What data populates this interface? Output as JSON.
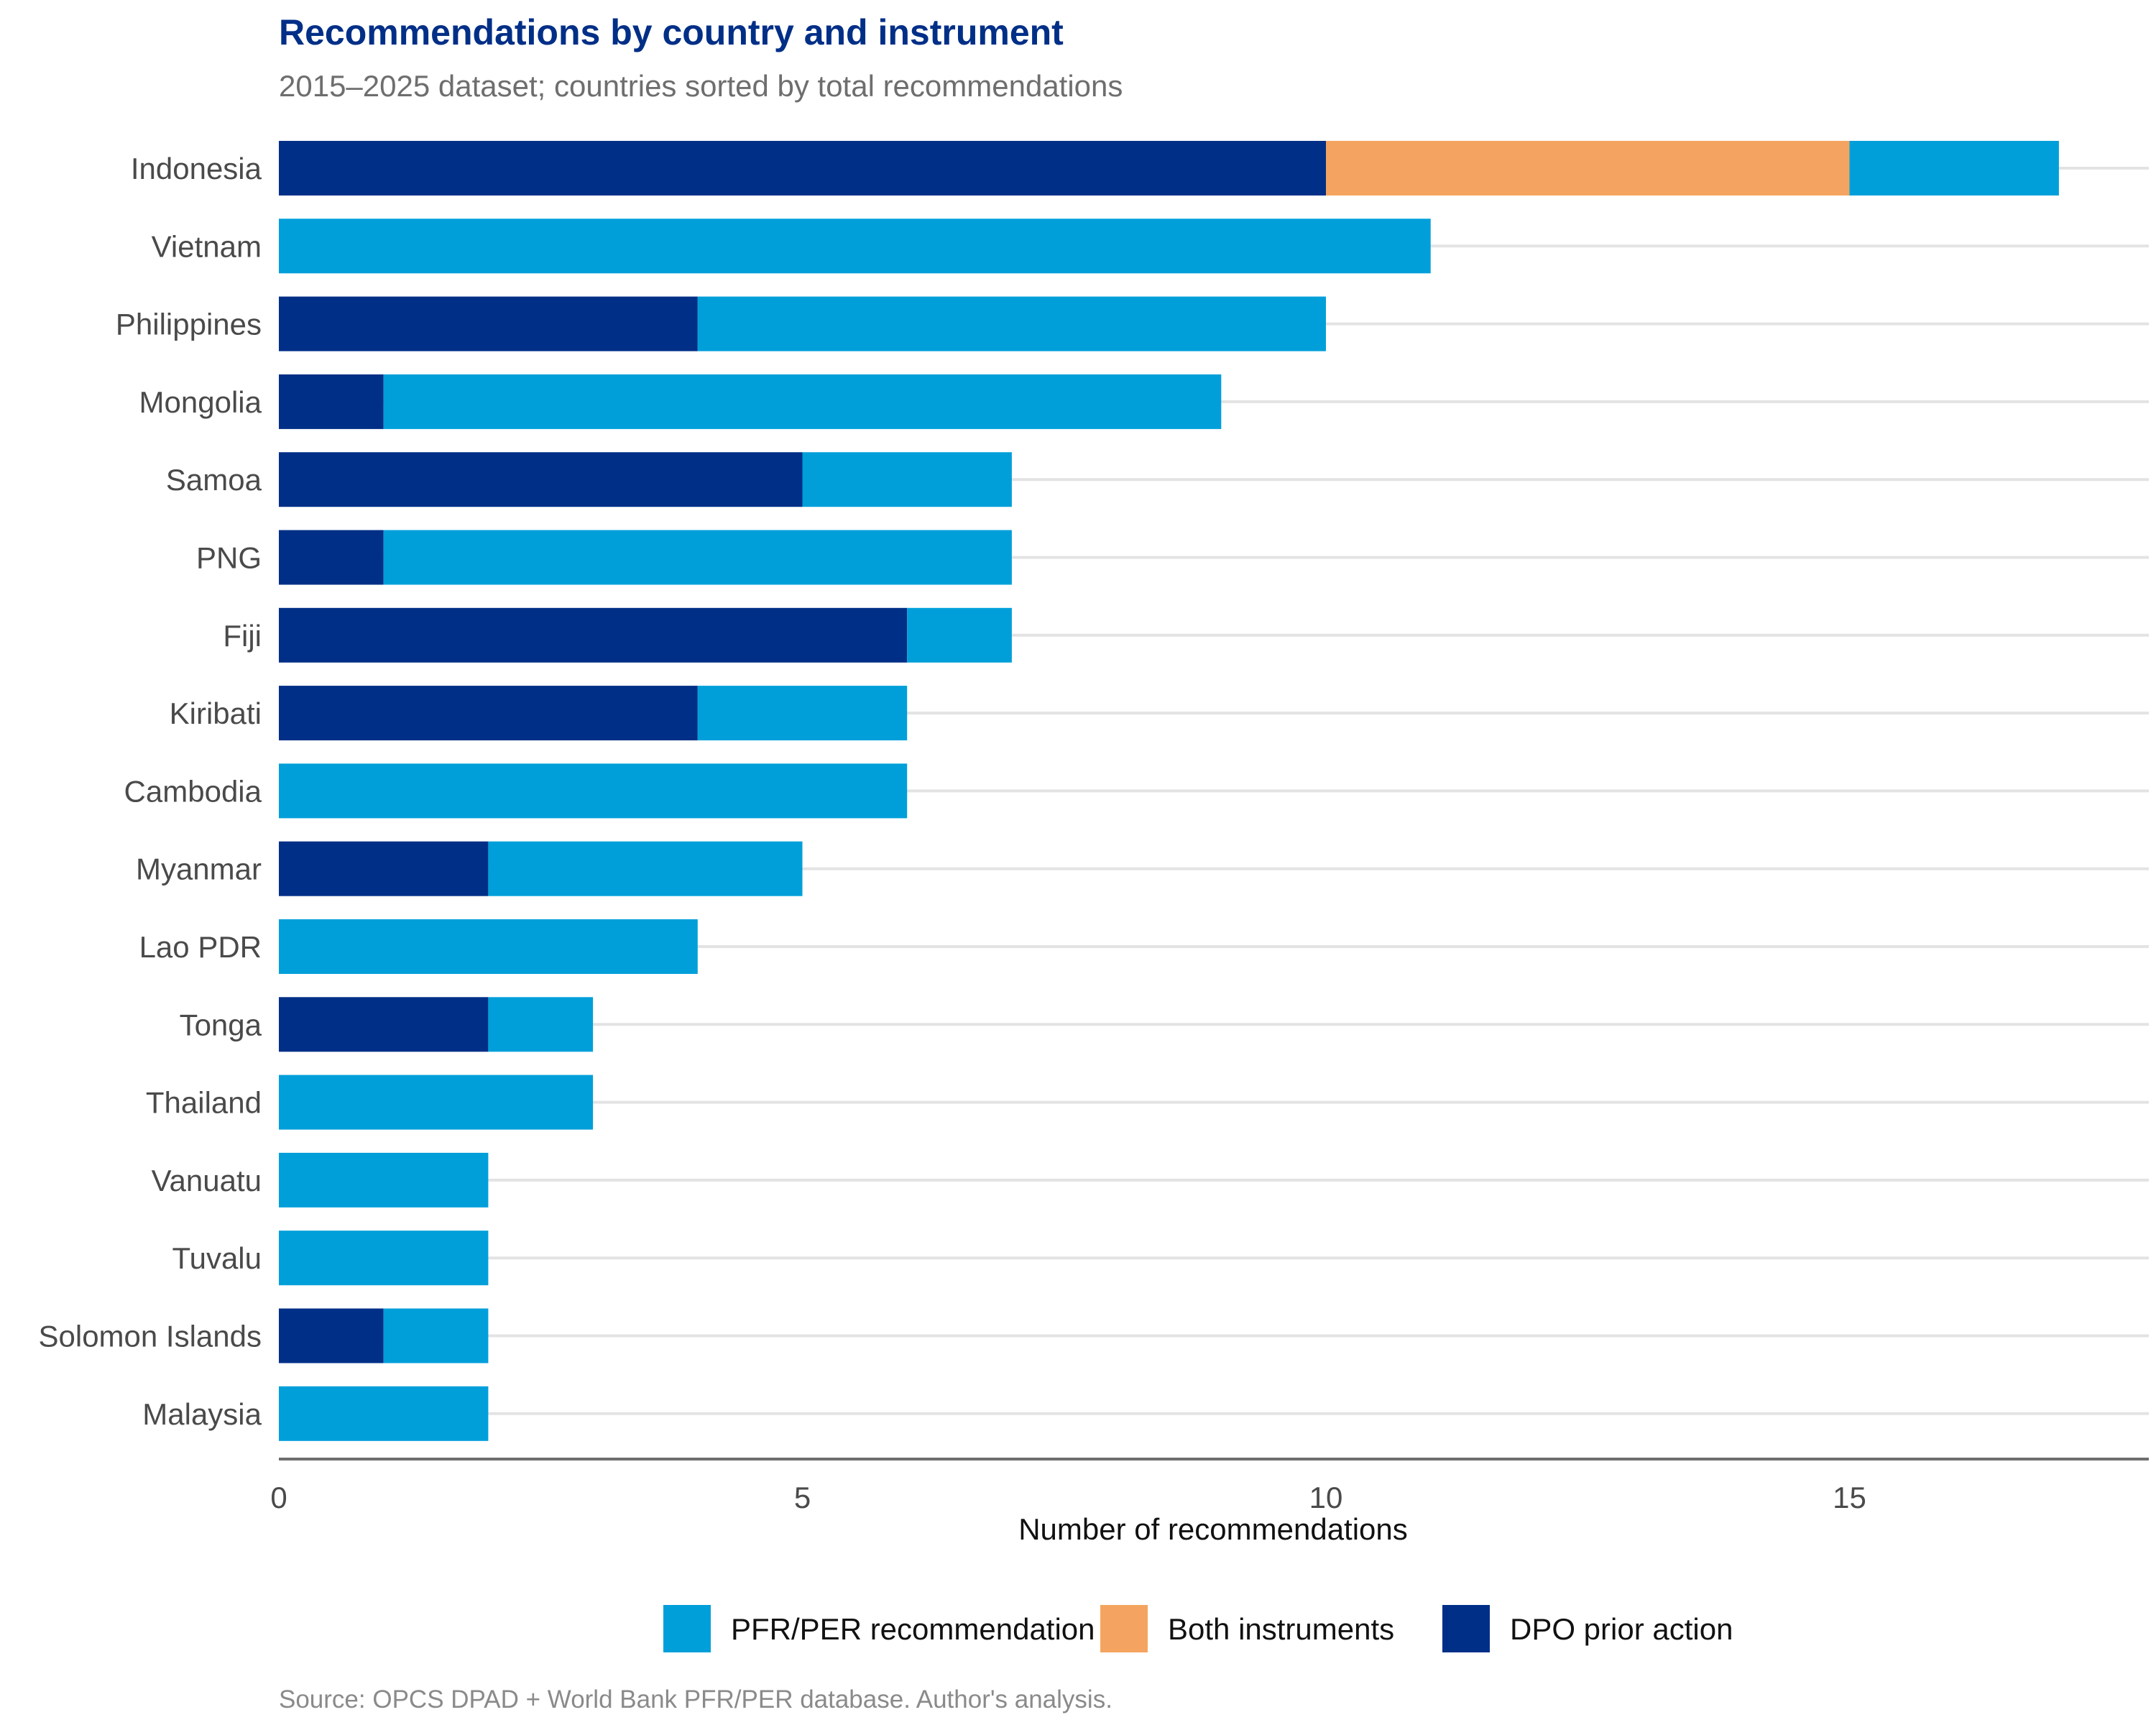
{
  "chart_data": {
    "type": "bar",
    "orientation": "horizontal",
    "stacked": true,
    "title": "Recommendations by country and instrument",
    "subtitle": "2015–2025 dataset; countries sorted by total recommendations",
    "xlabel": "Number of recommendations",
    "ylabel": "",
    "xlim": [
      0,
      17.85
    ],
    "xticks": [
      0,
      5,
      10,
      15
    ],
    "grid": "horizontal",
    "legend_position": "bottom",
    "caption": "Source: OPCS DPAD + World Bank PFR/PER database. Author's analysis.",
    "categories": [
      "Indonesia",
      "Vietnam",
      "Philippines",
      "Mongolia",
      "Samoa",
      "PNG",
      "Fiji",
      "Kiribati",
      "Cambodia",
      "Myanmar",
      "Lao PDR",
      "Tonga",
      "Thailand",
      "Vanuatu",
      "Tuvalu",
      "Solomon Islands",
      "Malaysia"
    ],
    "series": [
      {
        "name": "DPO prior action",
        "color": "#002f87",
        "values": [
          10,
          0,
          4,
          1,
          5,
          1,
          6,
          4,
          0,
          2,
          0,
          2,
          0,
          0,
          0,
          1,
          0
        ]
      },
      {
        "name": "Both instruments",
        "color": "#f4a460",
        "values": [
          5,
          0,
          0,
          0,
          0,
          0,
          0,
          0,
          0,
          0,
          0,
          0,
          0,
          0,
          0,
          0,
          0
        ]
      },
      {
        "name": "PFR/PER recommendation",
        "color": "#009fda",
        "values": [
          2,
          11,
          6,
          8,
          2,
          6,
          1,
          2,
          6,
          3,
          4,
          1,
          3,
          2,
          2,
          1,
          2
        ]
      }
    ],
    "legend_order": [
      "PFR/PER recommendation",
      "Both instruments",
      "DPO prior action"
    ]
  }
}
